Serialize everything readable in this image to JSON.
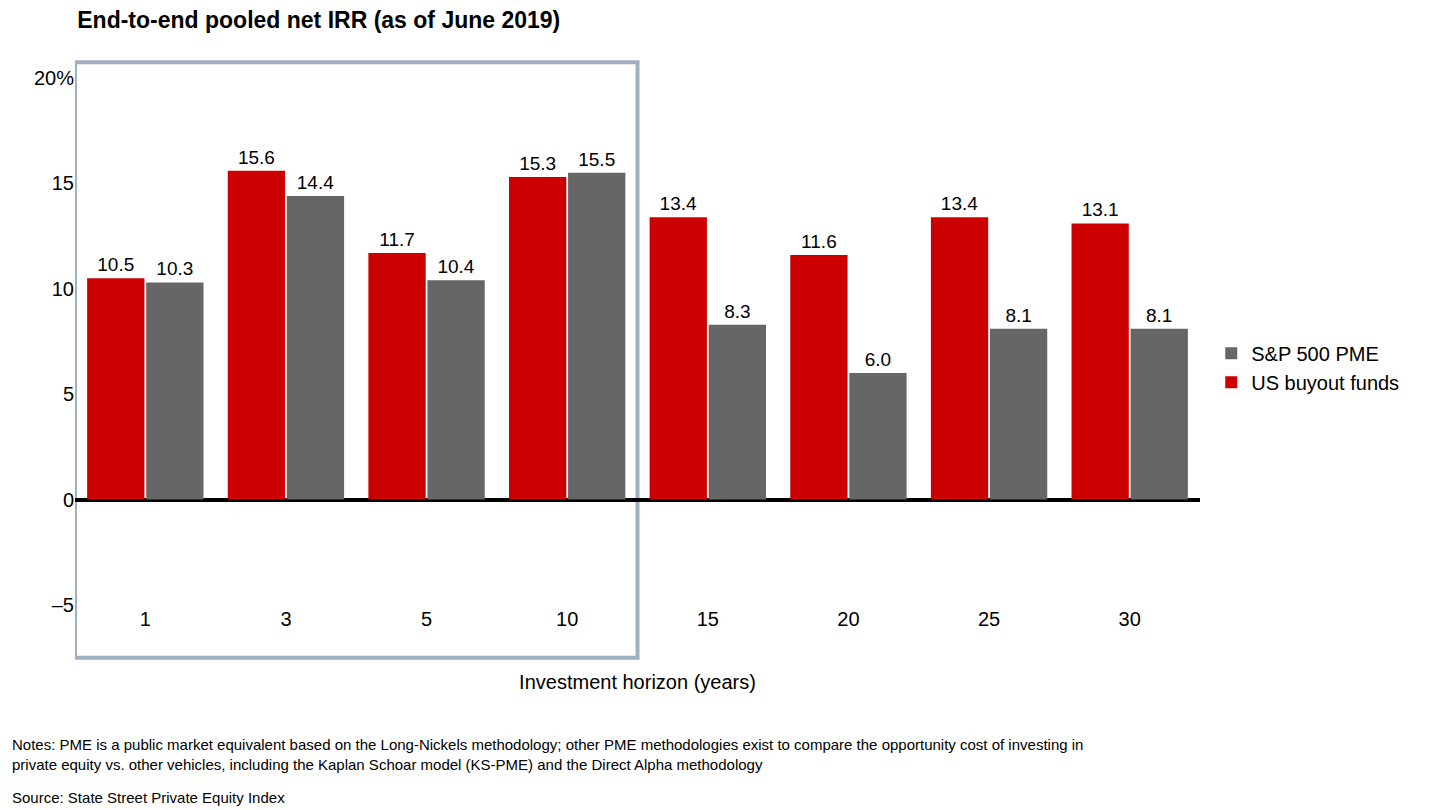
{
  "chart_data": {
    "type": "bar",
    "title": "End-to-end pooled net IRR (as of June 2019)",
    "x_label": "Investment horizon (years)",
    "categories": [
      "1",
      "3",
      "5",
      "10",
      "15",
      "20",
      "25",
      "30"
    ],
    "series": [
      {
        "name": "US buyout funds",
        "color": "#cc0000",
        "values": [
          10.5,
          15.6,
          11.7,
          15.3,
          13.4,
          11.6,
          13.4,
          13.1
        ],
        "value_labels": [
          "10.5",
          "15.6",
          "11.7",
          "15.3",
          "13.4",
          "11.6",
          "13.4",
          "13.1"
        ]
      },
      {
        "name": "S&P 500 PME",
        "color": "#666666",
        "values": [
          10.3,
          14.4,
          10.4,
          15.5,
          8.3,
          6.0,
          8.1,
          8.1
        ],
        "value_labels": [
          "10.3",
          "14.4",
          "10.4",
          "15.5",
          "8.3",
          "6.0",
          "8.1",
          "8.1"
        ]
      }
    ],
    "ylim": [
      -5,
      20
    ],
    "yticks": [
      {
        "value": -5,
        "label": "–5"
      },
      0,
      5,
      10,
      15,
      {
        "value": 20,
        "label": "20%"
      }
    ],
    "grid": false,
    "legend": "right",
    "data_labels": true,
    "notes": [
      "Notes: PME is a public market equivalent based on the Long-Nickels methodology; other PME methodologies exist to compare the opportunity cost of investing in",
      "private equity vs. other vehicles, including the Kaplan Schoar model (KS-PME) and the Direct Alpha methodology"
    ],
    "source": "Source: State Street Private Equity Index"
  }
}
